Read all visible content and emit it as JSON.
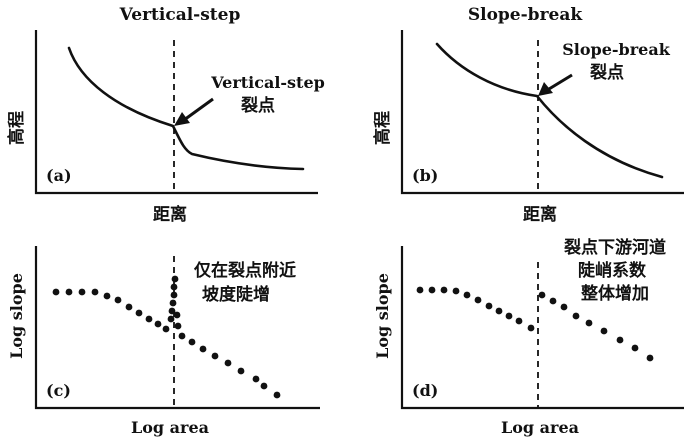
{
  "panels": {
    "a": {
      "title": "Vertical-step",
      "label": "(a)",
      "annotation_en": "Vertical-step",
      "annotation_cn": "裂点",
      "xlabel": "距离",
      "ylabel": "高程"
    },
    "b": {
      "title": "Slope-break",
      "label": "(b)",
      "annotation_en": "Slope-break",
      "annotation_cn": "裂点",
      "xlabel": "距离",
      "ylabel": "高程"
    },
    "c": {
      "label": "(c)",
      "annotation_line1": "仅在裂点附近",
      "annotation_line2": "坡度陡增",
      "xlabel": "Log area",
      "ylabel": "Log slope"
    },
    "d": {
      "label": "(d)",
      "annotation_line1": "裂点下游河道",
      "annotation_line2": "陡峭系数",
      "annotation_line3": "整体增加",
      "xlabel": "Log area",
      "ylabel": "Log slope"
    }
  },
  "colors": {
    "ink": "#111111",
    "background": "#ffffff"
  }
}
